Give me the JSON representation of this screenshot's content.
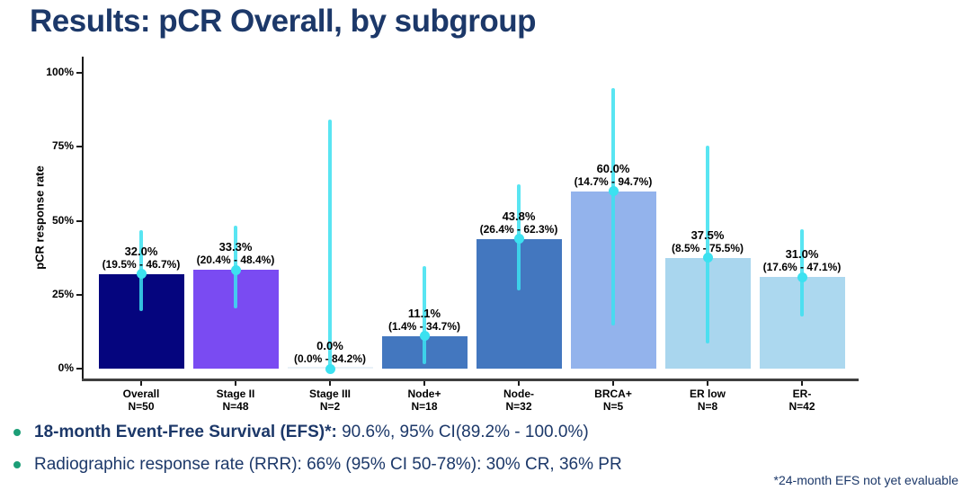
{
  "title": "Results: pCR Overall, by subgroup",
  "chart_data": {
    "type": "bar",
    "title": "",
    "xlabel": "",
    "ylabel": "pCR response rate",
    "ylim": [
      0,
      100
    ],
    "grid": false,
    "legend": "none",
    "yticks": [
      {
        "label": "0%",
        "value": 0
      },
      {
        "label": "25%",
        "value": 25
      },
      {
        "label": "50%",
        "value": 50
      },
      {
        "label": "75%",
        "value": 75
      },
      {
        "label": "100%",
        "value": 100
      }
    ],
    "error_bar_color": "#3CE1F0",
    "categories": [
      {
        "label": "Overall",
        "n_label": "N=50",
        "value": 32.0,
        "ci_low": 19.5,
        "ci_high": 46.7,
        "value_label": "32.0%",
        "ci_label": "(19.5% - 46.7%)",
        "color": "#05057E"
      },
      {
        "label": "Stage II",
        "n_label": "N=48",
        "value": 33.3,
        "ci_low": 20.4,
        "ci_high": 48.4,
        "value_label": "33.3%",
        "ci_label": "(20.4% - 48.4%)",
        "color": "#7A4BF2"
      },
      {
        "label": "Stage III",
        "n_label": "N=2",
        "value": 0.0,
        "ci_low": 0.0,
        "ci_high": 84.2,
        "value_label": "0.0%",
        "ci_label": "(0.0% - 84.2%)",
        "color": "#E9F1F8"
      },
      {
        "label": "Node+",
        "n_label": "N=18",
        "value": 11.1,
        "ci_low": 1.4,
        "ci_high": 34.7,
        "value_label": "11.1%",
        "ci_label": "(1.4% - 34.7%)",
        "color": "#4377BF"
      },
      {
        "label": "Node-",
        "n_label": "N=32",
        "value": 43.8,
        "ci_low": 26.4,
        "ci_high": 62.3,
        "value_label": "43.8%",
        "ci_label": "(26.4% - 62.3%)",
        "color": "#4377BF"
      },
      {
        "label": "BRCA+",
        "n_label": "N=5",
        "value": 60.0,
        "ci_low": 14.7,
        "ci_high": 94.7,
        "value_label": "60.0%",
        "ci_label": "(14.7% - 94.7%)",
        "color": "#93B3EC"
      },
      {
        "label": "ER low",
        "n_label": "N=8",
        "value": 37.5,
        "ci_low": 8.5,
        "ci_high": 75.5,
        "value_label": "37.5%",
        "ci_label": "(8.5% - 75.5%)",
        "color": "#A9D6EE"
      },
      {
        "label": "ER-",
        "n_label": "N=42",
        "value": 31.0,
        "ci_low": 17.6,
        "ci_high": 47.1,
        "value_label": "31.0%",
        "ci_label": "(17.6% - 47.1%)",
        "color": "#ACD8EF"
      }
    ]
  },
  "bullets": [
    {
      "bold": "18-month Event-Free Survival (EFS)*:",
      "regular": " 90.6%, 95% CI(89.2% - 100.0%)"
    },
    {
      "bold": "",
      "regular": "Radiographic response rate (RRR): 66% (95% CI 50-78%): 30% CR, 36% PR"
    }
  ],
  "footnote": "*24-month EFS not yet evaluable",
  "colors": {
    "title_text": "#1C3869",
    "bullet_text": "#1C3869",
    "bullet_dot": "#1C9E77",
    "axis_line": "#3F3F3F",
    "label_text": "#000000"
  }
}
